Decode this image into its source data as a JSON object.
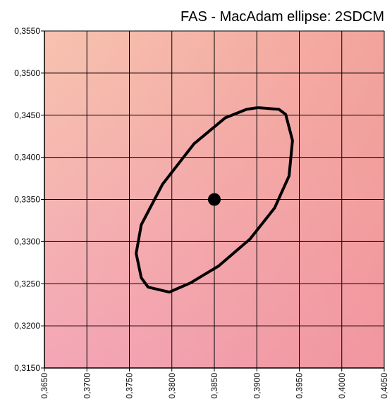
{
  "chart_data": {
    "type": "scatter",
    "title": "FAS - MacAdam ellipse: 2SDCM",
    "xlim": [
      0.365,
      0.405
    ],
    "ylim": [
      0.315,
      0.355
    ],
    "xticks": [
      {
        "value": 0.365,
        "label": "0,3650"
      },
      {
        "value": 0.37,
        "label": "0,3700"
      },
      {
        "value": 0.375,
        "label": "0,3750"
      },
      {
        "value": 0.38,
        "label": "0,3800"
      },
      {
        "value": 0.385,
        "label": "0,3850"
      },
      {
        "value": 0.39,
        "label": "0,3900"
      },
      {
        "value": 0.395,
        "label": "0,3950"
      },
      {
        "value": 0.4,
        "label": "0,4000"
      },
      {
        "value": 0.405,
        "label": "0,4050"
      }
    ],
    "yticks": [
      {
        "value": 0.315,
        "label": "0,3150"
      },
      {
        "value": 0.32,
        "label": "0,3200"
      },
      {
        "value": 0.325,
        "label": "0,3250"
      },
      {
        "value": 0.33,
        "label": "0,3300"
      },
      {
        "value": 0.335,
        "label": "0,3350"
      },
      {
        "value": 0.34,
        "label": "0,3400"
      },
      {
        "value": 0.345,
        "label": "0,3450"
      },
      {
        "value": 0.35,
        "label": "0,3500"
      },
      {
        "value": 0.355,
        "label": "0,3550"
      }
    ],
    "grid": true,
    "point": {
      "x": 0.385,
      "y": 0.335,
      "color": "#000000"
    },
    "ellipse": {
      "color": "#000000",
      "x": [
        0.3901,
        0.3926,
        0.3934,
        0.3942,
        0.3938,
        0.3921,
        0.3892,
        0.3855,
        0.3822,
        0.3797,
        0.3772,
        0.3764,
        0.3758,
        0.3764,
        0.3789,
        0.3826,
        0.3863,
        0.3888,
        0.3901
      ],
      "y": [
        0.3459,
        0.3457,
        0.3451,
        0.342,
        0.3378,
        0.334,
        0.3303,
        0.3271,
        0.3251,
        0.324,
        0.3246,
        0.3257,
        0.3286,
        0.332,
        0.3368,
        0.3416,
        0.3447,
        0.3457,
        0.3459
      ]
    }
  }
}
